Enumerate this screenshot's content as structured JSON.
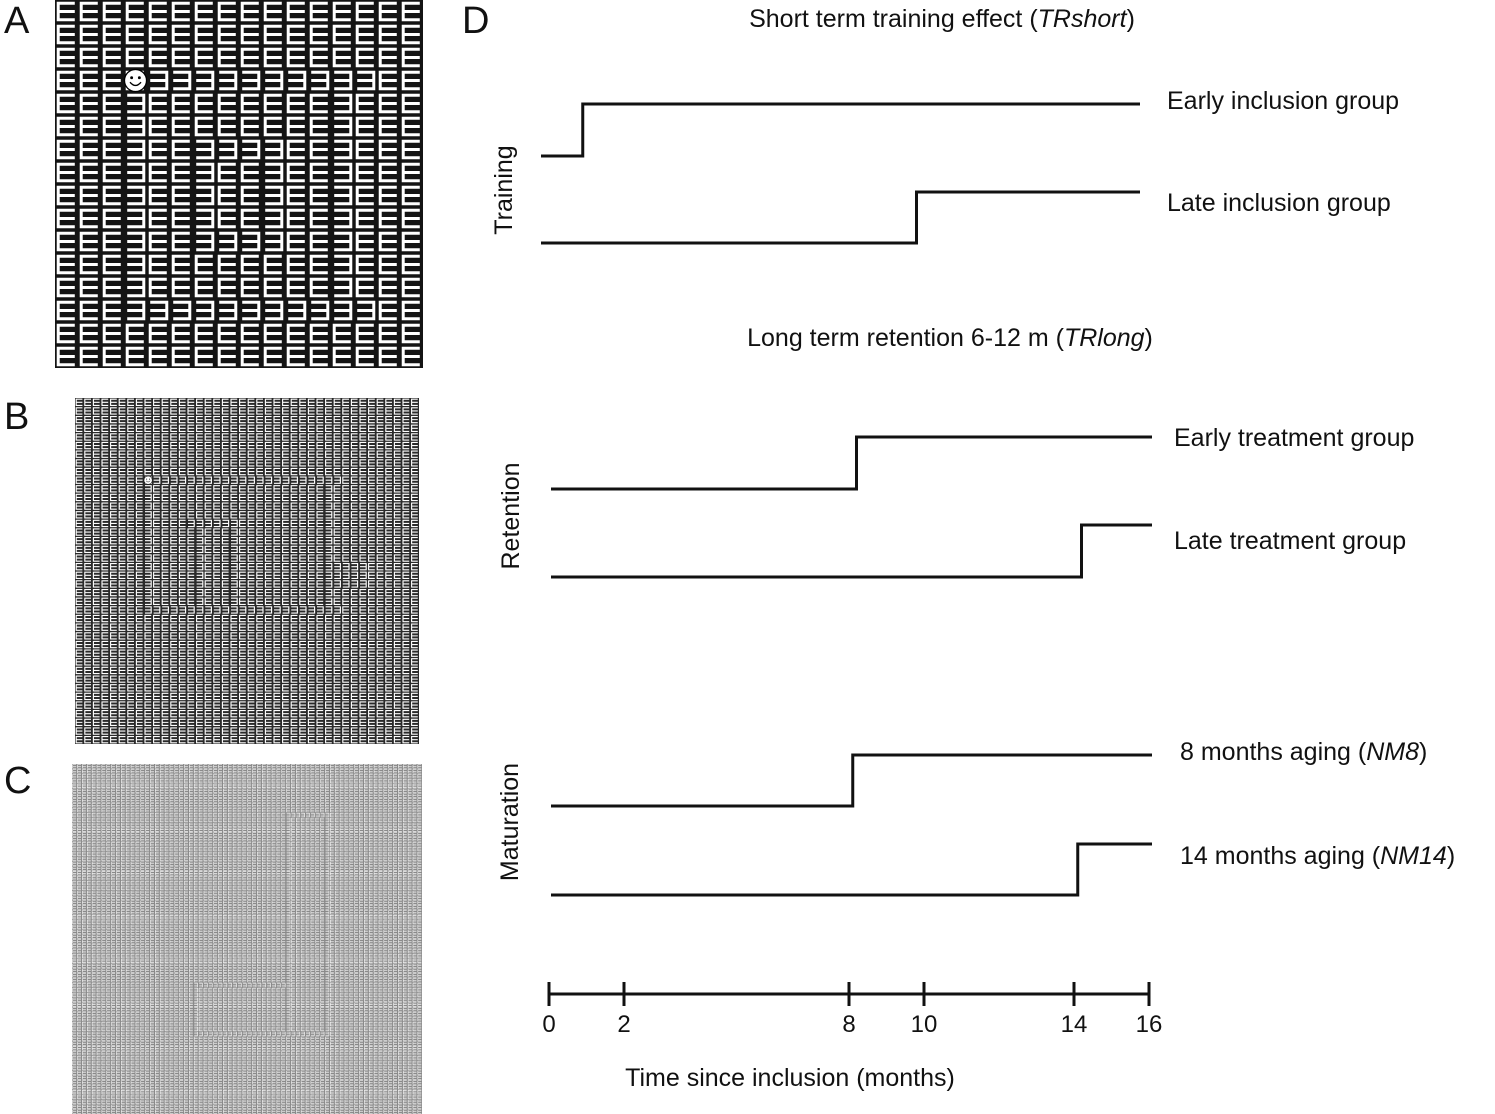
{
  "panels": {
    "a": "A",
    "b": "B",
    "c": "C",
    "d": "D"
  },
  "colors": {
    "maze_a_bg": "#141414",
    "maze_b_bg": "#2a2a2a",
    "maze_c_bg": "#8a8a8a",
    "glyph": "#ffffff",
    "line": "#111111"
  },
  "icons": {
    "smiley": "smiley-face-icon"
  },
  "diagram": {
    "sections": [
      {
        "title": "Short term training effect (",
        "title_italic": "TRshort",
        "title_end": ")",
        "axis_label": "Training",
        "series": [
          {
            "label": "Early inclusion group",
            "step_month": 0.9
          },
          {
            "label": "Late inclusion group",
            "step_month": 9.8
          }
        ]
      },
      {
        "title": "Long term retention 6-12 m (",
        "title_italic": "TRlong",
        "title_end": ")",
        "axis_label": "Retention",
        "series": [
          {
            "label": "Early treatment group",
            "step_month": 8.2
          },
          {
            "label": "Late treatment group",
            "step_month": 14.2
          }
        ]
      },
      {
        "title": "",
        "title_italic": "",
        "title_end": "",
        "axis_label": "Maturation",
        "series": [
          {
            "label_prefix": "8 months aging (",
            "label_italic": "NM8",
            "label_suffix": ")",
            "step_month": 8.1
          },
          {
            "label_prefix": "14 months aging (",
            "label_italic": "NM14",
            "label_suffix": ")",
            "step_month": 14.1
          }
        ]
      }
    ],
    "time_axis": {
      "label": "Time since inclusion (months)",
      "ticks": [
        0,
        2,
        8,
        10,
        14,
        16
      ],
      "range": [
        0,
        16
      ]
    }
  }
}
